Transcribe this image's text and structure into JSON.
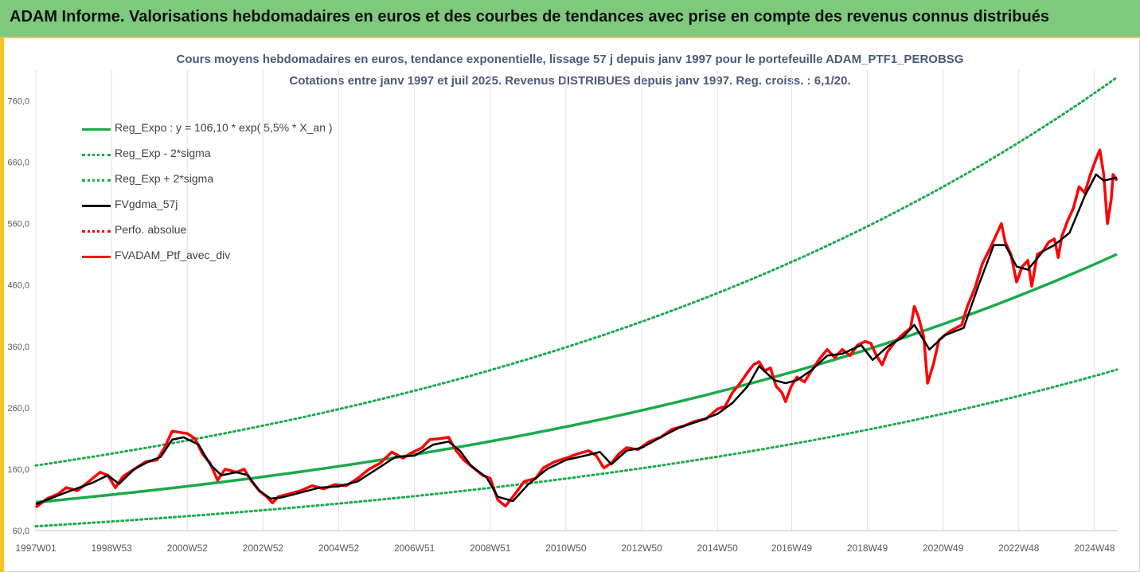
{
  "banner": {
    "title": "ADAM Informe. Valorisations hebdomadaires en euros et des courbes de tendances avec prise en compte des revenus connus distribués",
    "bg": "#7ec97c"
  },
  "chart_data": {
    "type": "line",
    "title": "Cours moyens hebdomadaires  en euros, tendance exponentielle, lissage 57 j depuis janv 1997 pour le portefeuille ADAM_PTF1_PEROBSG",
    "subtitle": "Cotations entre janv 1997 et juil 2025. Revenus DISTRIBUES depuis janv 1997. Reg. croiss. : 6,1/20.",
    "xlabel": "",
    "ylabel": "",
    "x_range": [
      1997.0,
      2025.55
    ],
    "ylim": [
      60,
      810
    ],
    "y_ticks": [
      60,
      160,
      260,
      360,
      460,
      560,
      660,
      760
    ],
    "y_tick_labels": [
      "60,0",
      "160,0",
      "260,0",
      "360,0",
      "460,0",
      "560,0",
      "660,0",
      "760,0"
    ],
    "x_ticks": [
      1997.0,
      1999.0,
      2001.0,
      2003.0,
      2005.0,
      2007.0,
      2009.0,
      2011.0,
      2013.0,
      2015.0,
      2016.96,
      2018.96,
      2020.96,
      2022.96,
      2024.96
    ],
    "x_tick_labels": [
      "1997W01",
      "1998W53",
      "2000W52",
      "2002W52",
      "2004W52",
      "2006W51",
      "2008W51",
      "2010W50",
      "2012W50",
      "2014W50",
      "2016W49",
      "2018W49",
      "2020W49",
      "2022W48",
      "2024W48"
    ],
    "grid": "vertical",
    "legend_position": "top-left",
    "series": [
      {
        "name": "Reg_Expo : y = 106,10 * exp( 5,5% *  X_an )",
        "color": "#1aaa4a",
        "style": "solid",
        "model": {
          "a": 106.1,
          "rate": 0.055,
          "origin": 1997.0
        }
      },
      {
        "name": "Reg_Exp - 2*sigma",
        "color": "#1aaa4a",
        "style": "dotted",
        "model": {
          "a": 67.0,
          "rate": 0.055,
          "origin": 1997.0
        }
      },
      {
        "name": "Reg_Exp + 2*sigma",
        "color": "#1aaa4a",
        "style": "dotted",
        "model": {
          "a": 166.0,
          "rate": 0.055,
          "origin": 1997.0
        }
      },
      {
        "name": "FVgdma_57j",
        "color": "#000000",
        "style": "solid",
        "points": [
          [
            1997.0,
            103
          ],
          [
            1997.5,
            115
          ],
          [
            1998.0,
            127
          ],
          [
            1998.5,
            138
          ],
          [
            1998.9,
            150
          ],
          [
            1999.2,
            136
          ],
          [
            1999.6,
            160
          ],
          [
            2000.0,
            173
          ],
          [
            2000.3,
            180
          ],
          [
            2000.6,
            208
          ],
          [
            2000.9,
            212
          ],
          [
            2001.3,
            200
          ],
          [
            2001.6,
            168
          ],
          [
            2001.9,
            150
          ],
          [
            2002.3,
            155
          ],
          [
            2002.6,
            150
          ],
          [
            2002.9,
            125
          ],
          [
            2003.2,
            112
          ],
          [
            2003.5,
            114
          ],
          [
            2004.0,
            122
          ],
          [
            2004.5,
            130
          ],
          [
            2005.0,
            132
          ],
          [
            2005.5,
            140
          ],
          [
            2006.0,
            160
          ],
          [
            2006.5,
            180
          ],
          [
            2007.0,
            182
          ],
          [
            2007.5,
            200
          ],
          [
            2007.9,
            205
          ],
          [
            2008.2,
            190
          ],
          [
            2008.5,
            165
          ],
          [
            2008.9,
            147
          ],
          [
            2009.2,
            115
          ],
          [
            2009.6,
            108
          ],
          [
            2010.0,
            135
          ],
          [
            2010.5,
            160
          ],
          [
            2011.0,
            175
          ],
          [
            2011.5,
            182
          ],
          [
            2011.9,
            188
          ],
          [
            2012.2,
            168
          ],
          [
            2012.6,
            190
          ],
          [
            2013.0,
            195
          ],
          [
            2013.5,
            212
          ],
          [
            2014.0,
            228
          ],
          [
            2014.5,
            238
          ],
          [
            2015.0,
            250
          ],
          [
            2015.4,
            268
          ],
          [
            2015.8,
            295
          ],
          [
            2016.1,
            328
          ],
          [
            2016.5,
            305
          ],
          [
            2016.8,
            300
          ],
          [
            2017.1,
            305
          ],
          [
            2017.5,
            322
          ],
          [
            2017.9,
            345
          ],
          [
            2018.3,
            348
          ],
          [
            2018.8,
            362
          ],
          [
            2019.1,
            338
          ],
          [
            2019.5,
            360
          ],
          [
            2019.9,
            375
          ],
          [
            2020.2,
            395
          ],
          [
            2020.6,
            355
          ],
          [
            2021.0,
            378
          ],
          [
            2021.5,
            390
          ],
          [
            2021.9,
            460
          ],
          [
            2022.3,
            525
          ],
          [
            2022.6,
            525
          ],
          [
            2022.9,
            490
          ],
          [
            2023.2,
            485
          ],
          [
            2023.6,
            515
          ],
          [
            2023.9,
            525
          ],
          [
            2024.3,
            545
          ],
          [
            2024.7,
            605
          ],
          [
            2025.0,
            640
          ],
          [
            2025.2,
            630
          ],
          [
            2025.55,
            635
          ]
        ]
      },
      {
        "name": "Perfo. absolue",
        "color": "#ff0000",
        "style": "dotted",
        "points": []
      },
      {
        "name": "FVADAM_Ptf_avec_div",
        "color": "#ff0000",
        "style": "solid",
        "points": [
          [
            1997.0,
            98
          ],
          [
            1997.3,
            112
          ],
          [
            1997.6,
            120
          ],
          [
            1997.8,
            130
          ],
          [
            1998.1,
            125
          ],
          [
            1998.4,
            140
          ],
          [
            1998.7,
            155
          ],
          [
            1998.9,
            150
          ],
          [
            1999.1,
            130
          ],
          [
            1999.3,
            148
          ],
          [
            1999.6,
            160
          ],
          [
            1999.9,
            172
          ],
          [
            2000.2,
            175
          ],
          [
            2000.4,
            195
          ],
          [
            2000.6,
            222
          ],
          [
            2000.8,
            220
          ],
          [
            2001.0,
            218
          ],
          [
            2001.2,
            210
          ],
          [
            2001.4,
            185
          ],
          [
            2001.6,
            170
          ],
          [
            2001.8,
            142
          ],
          [
            2002.0,
            160
          ],
          [
            2002.3,
            155
          ],
          [
            2002.5,
            160
          ],
          [
            2002.7,
            140
          ],
          [
            2002.9,
            125
          ],
          [
            2003.1,
            115
          ],
          [
            2003.25,
            105
          ],
          [
            2003.4,
            115
          ],
          [
            2003.7,
            120
          ],
          [
            2004.0,
            125
          ],
          [
            2004.3,
            133
          ],
          [
            2004.6,
            128
          ],
          [
            2004.9,
            135
          ],
          [
            2005.2,
            133
          ],
          [
            2005.5,
            145
          ],
          [
            2005.8,
            160
          ],
          [
            2006.1,
            170
          ],
          [
            2006.4,
            188
          ],
          [
            2006.7,
            178
          ],
          [
            2006.9,
            186
          ],
          [
            2007.2,
            195
          ],
          [
            2007.4,
            208
          ],
          [
            2007.7,
            210
          ],
          [
            2007.9,
            212
          ],
          [
            2008.1,
            190
          ],
          [
            2008.3,
            175
          ],
          [
            2008.6,
            160
          ],
          [
            2008.8,
            150
          ],
          [
            2009.0,
            145
          ],
          [
            2009.2,
            110
          ],
          [
            2009.4,
            100
          ],
          [
            2009.6,
            115
          ],
          [
            2009.9,
            140
          ],
          [
            2010.2,
            145
          ],
          [
            2010.4,
            162
          ],
          [
            2010.7,
            172
          ],
          [
            2011.0,
            178
          ],
          [
            2011.3,
            185
          ],
          [
            2011.6,
            190
          ],
          [
            2011.8,
            182
          ],
          [
            2012.0,
            162
          ],
          [
            2012.2,
            170
          ],
          [
            2012.4,
            185
          ],
          [
            2012.6,
            195
          ],
          [
            2012.9,
            192
          ],
          [
            2013.2,
            205
          ],
          [
            2013.5,
            212
          ],
          [
            2013.8,
            225
          ],
          [
            2014.1,
            230
          ],
          [
            2014.4,
            238
          ],
          [
            2014.7,
            242
          ],
          [
            2015.0,
            258
          ],
          [
            2015.2,
            262
          ],
          [
            2015.4,
            285
          ],
          [
            2015.6,
            300
          ],
          [
            2015.8,
            318
          ],
          [
            2015.95,
            330
          ],
          [
            2016.1,
            335
          ],
          [
            2016.25,
            320
          ],
          [
            2016.4,
            325
          ],
          [
            2016.55,
            295
          ],
          [
            2016.7,
            285
          ],
          [
            2016.8,
            270
          ],
          [
            2016.95,
            295
          ],
          [
            2017.1,
            310
          ],
          [
            2017.3,
            302
          ],
          [
            2017.5,
            322
          ],
          [
            2017.7,
            340
          ],
          [
            2017.9,
            355
          ],
          [
            2018.1,
            342
          ],
          [
            2018.3,
            355
          ],
          [
            2018.5,
            345
          ],
          [
            2018.7,
            362
          ],
          [
            2018.9,
            368
          ],
          [
            2019.05,
            365
          ],
          [
            2019.2,
            345
          ],
          [
            2019.35,
            330
          ],
          [
            2019.5,
            352
          ],
          [
            2019.7,
            368
          ],
          [
            2019.9,
            380
          ],
          [
            2020.1,
            390
          ],
          [
            2020.2,
            425
          ],
          [
            2020.3,
            410
          ],
          [
            2020.45,
            375
          ],
          [
            2020.55,
            300
          ],
          [
            2020.7,
            330
          ],
          [
            2020.85,
            370
          ],
          [
            2021.0,
            378
          ],
          [
            2021.15,
            385
          ],
          [
            2021.3,
            390
          ],
          [
            2021.45,
            395
          ],
          [
            2021.6,
            425
          ],
          [
            2021.8,
            455
          ],
          [
            2022.0,
            495
          ],
          [
            2022.2,
            520
          ],
          [
            2022.35,
            540
          ],
          [
            2022.5,
            560
          ],
          [
            2022.6,
            530
          ],
          [
            2022.75,
            510
          ],
          [
            2022.9,
            465
          ],
          [
            2023.05,
            490
          ],
          [
            2023.2,
            500
          ],
          [
            2023.3,
            458
          ],
          [
            2023.45,
            510
          ],
          [
            2023.6,
            515
          ],
          [
            2023.75,
            530
          ],
          [
            2023.9,
            535
          ],
          [
            2024.0,
            505
          ],
          [
            2024.1,
            540
          ],
          [
            2024.25,
            565
          ],
          [
            2024.4,
            585
          ],
          [
            2024.55,
            620
          ],
          [
            2024.7,
            610
          ],
          [
            2024.85,
            640
          ],
          [
            2025.0,
            665
          ],
          [
            2025.1,
            680
          ],
          [
            2025.2,
            640
          ],
          [
            2025.3,
            560
          ],
          [
            2025.4,
            600
          ],
          [
            2025.45,
            640
          ],
          [
            2025.55,
            630
          ]
        ]
      }
    ]
  }
}
